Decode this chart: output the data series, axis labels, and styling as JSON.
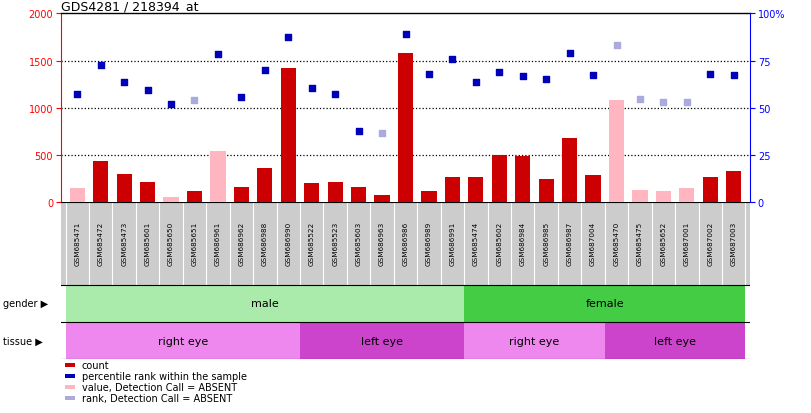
{
  "title": "GDS4281 / 218394_at",
  "samples": [
    "GSM685471",
    "GSM685472",
    "GSM685473",
    "GSM685601",
    "GSM685650",
    "GSM685651",
    "GSM686961",
    "GSM686962",
    "GSM686988",
    "GSM686990",
    "GSM685522",
    "GSM685523",
    "GSM685603",
    "GSM686963",
    "GSM686986",
    "GSM686989",
    "GSM686991",
    "GSM685474",
    "GSM685602",
    "GSM686984",
    "GSM686985",
    "GSM686987",
    "GSM687004",
    "GSM685470",
    "GSM685475",
    "GSM685652",
    "GSM687001",
    "GSM687002",
    "GSM687003"
  ],
  "count_present": [
    0,
    430,
    300,
    210,
    0,
    120,
    0,
    155,
    355,
    1420,
    195,
    210,
    160,
    70,
    1580,
    115,
    260,
    265,
    500,
    490,
    240,
    680,
    290,
    0,
    0,
    0,
    0,
    265,
    330
  ],
  "count_absent": [
    150,
    0,
    0,
    0,
    55,
    0,
    535,
    0,
    0,
    0,
    0,
    0,
    0,
    0,
    0,
    0,
    0,
    0,
    0,
    0,
    0,
    0,
    0,
    1080,
    125,
    120,
    150,
    0,
    0
  ],
  "rank_present": [
    1140,
    1450,
    1270,
    1190,
    1040,
    0,
    1570,
    1110,
    1395,
    1750,
    1210,
    1140,
    750,
    0,
    1780,
    1360,
    1520,
    1270,
    1380,
    1335,
    1305,
    1580,
    1345,
    0,
    0,
    0,
    0,
    1355,
    1350
  ],
  "rank_absent": [
    0,
    0,
    0,
    0,
    0,
    1085,
    0,
    0,
    0,
    0,
    0,
    0,
    0,
    730,
    0,
    0,
    0,
    0,
    0,
    0,
    0,
    0,
    0,
    1665,
    1095,
    1065,
    1060,
    0,
    0
  ],
  "gender_groups": [
    {
      "label": "male",
      "start": 0,
      "end": 17,
      "color": "#AAEAAA"
    },
    {
      "label": "female",
      "start": 17,
      "end": 29,
      "color": "#44CC44"
    }
  ],
  "tissue_groups": [
    {
      "label": "right eye",
      "start": 0,
      "end": 10,
      "color": "#EE88EE"
    },
    {
      "label": "left eye",
      "start": 10,
      "end": 17,
      "color": "#CC44CC"
    },
    {
      "label": "right eye",
      "start": 17,
      "end": 23,
      "color": "#EE88EE"
    },
    {
      "label": "left eye",
      "start": 23,
      "end": 29,
      "color": "#CC44CC"
    }
  ],
  "left_ylim": [
    0,
    2000
  ],
  "right_ylim": [
    0,
    100
  ],
  "left_yticks": [
    0,
    500,
    1000,
    1500,
    2000
  ],
  "right_yticks": [
    0,
    25,
    50,
    75,
    100
  ],
  "bar_color": "#CC0000",
  "bar_absent_color": "#FFB6C1",
  "rank_color": "#0000BB",
  "rank_absent_color": "#AAAADD",
  "legend_items": [
    {
      "label": "count",
      "color": "#CC0000"
    },
    {
      "label": "percentile rank within the sample",
      "color": "#0000BB"
    },
    {
      "label": "value, Detection Call = ABSENT",
      "color": "#FFB6C1"
    },
    {
      "label": "rank, Detection Call = ABSENT",
      "color": "#AAAADD"
    }
  ]
}
